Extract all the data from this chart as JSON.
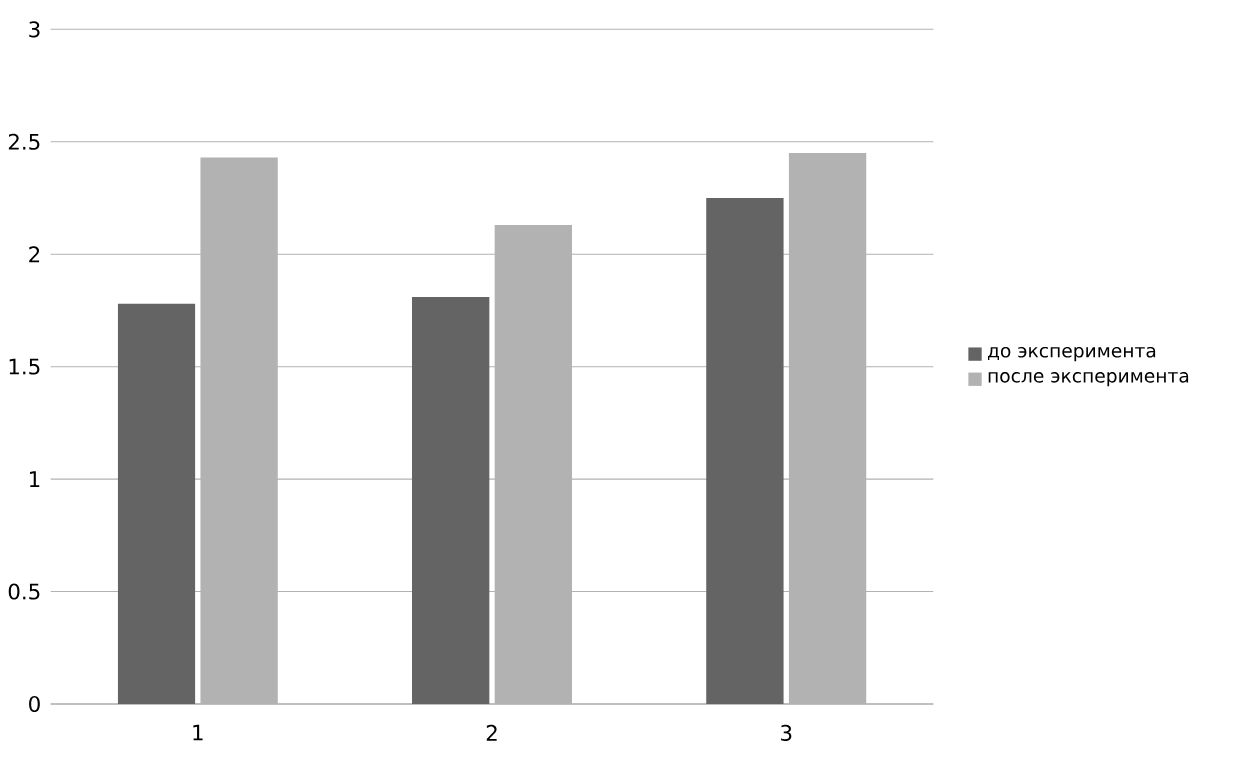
{
  "chart_data": {
    "type": "bar",
    "categories": [
      "1",
      "2",
      "3"
    ],
    "series": [
      {
        "name": "до эксперимента",
        "color": "#646464",
        "values": [
          1.78,
          1.81,
          2.25
        ]
      },
      {
        "name": "после эксперимента",
        "color": "#b2b2b2",
        "values": [
          2.43,
          2.13,
          2.45
        ]
      }
    ],
    "ylim": [
      0,
      3
    ],
    "yticks": [
      0,
      0.5,
      1,
      1.5,
      2,
      2.5,
      3
    ],
    "grid": "y",
    "legend": "right"
  }
}
